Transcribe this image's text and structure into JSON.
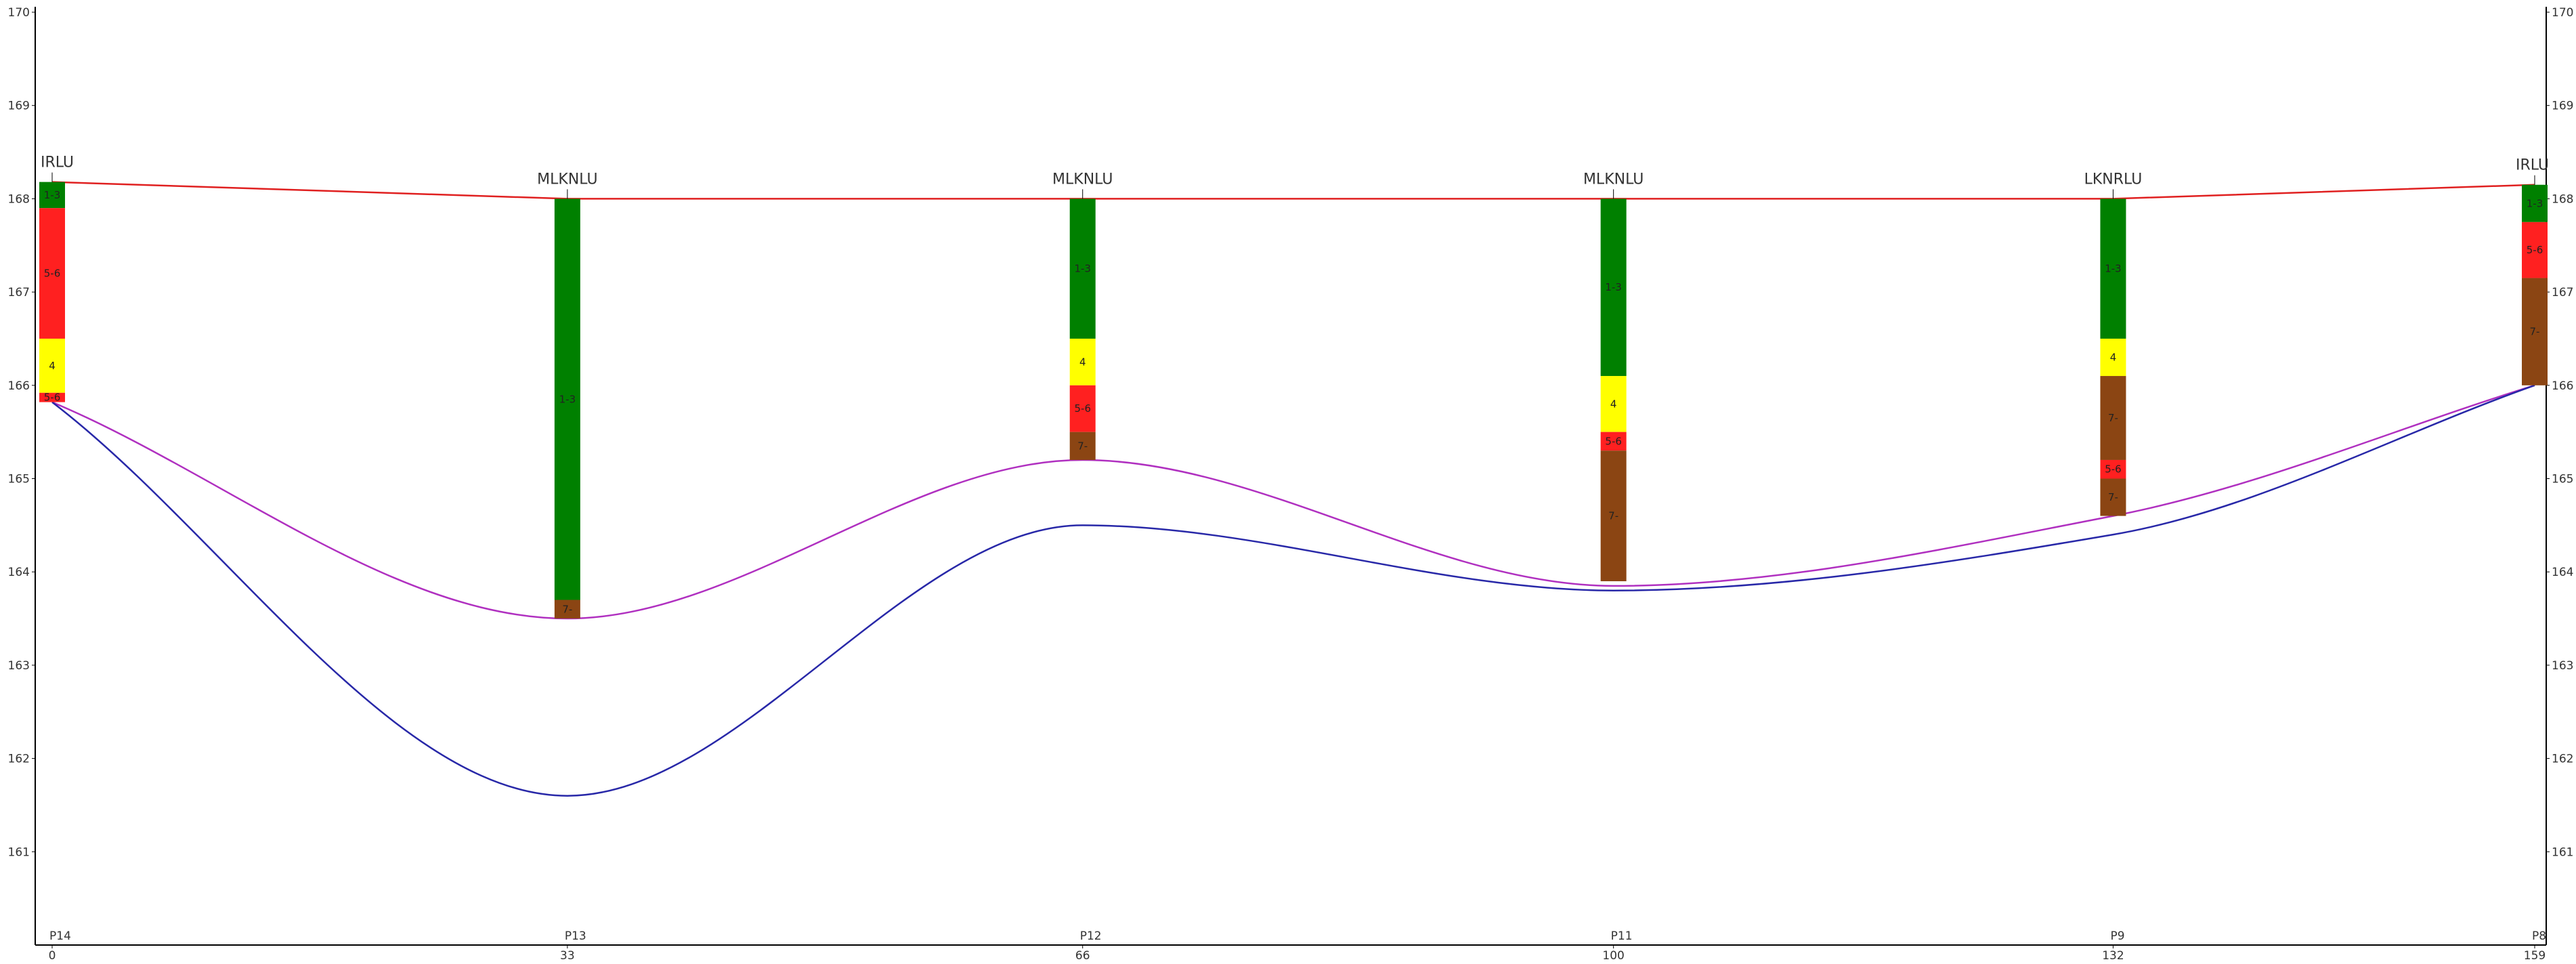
{
  "chart_data": {
    "type": "cross-section",
    "ylim": [
      160,
      170
    ],
    "xlim": [
      0,
      159
    ],
    "y_ticks": [
      "170",
      "169",
      "168",
      "167",
      "166",
      "165",
      "164",
      "163",
      "162",
      "161"
    ],
    "x_ticks": [
      {
        "dist": 0,
        "point": "P14",
        "value": "0"
      },
      {
        "dist": 33,
        "point": "P13",
        "value": "33"
      },
      {
        "dist": 66,
        "point": "P12",
        "value": "66"
      },
      {
        "dist": 100,
        "point": "P11",
        "value": "100"
      },
      {
        "dist": 132,
        "point": "P9",
        "value": "132"
      },
      {
        "dist": 159,
        "point": "P8",
        "value": "159"
      }
    ],
    "boreholes": [
      {
        "dist": 0,
        "label": "IRLU",
        "layers": [
          {
            "top": 168.18,
            "bottom": 167.9,
            "label": "1-3",
            "color": "#008000"
          },
          {
            "top": 167.9,
            "bottom": 166.5,
            "label": "5-6",
            "color": "#ff2020"
          },
          {
            "top": 166.5,
            "bottom": 165.92,
            "label": "4",
            "color": "#ffff00"
          },
          {
            "top": 165.92,
            "bottom": 165.82,
            "label": "5-6",
            "color": "#ff2020"
          }
        ]
      },
      {
        "dist": 33,
        "label": "MLKNLU",
        "layers": [
          {
            "top": 168.0,
            "bottom": 163.7,
            "label": "1-3",
            "color": "#008000"
          },
          {
            "top": 163.7,
            "bottom": 163.5,
            "label": "7-",
            "color": "#8b4513"
          }
        ]
      },
      {
        "dist": 66,
        "label": "MLKNLU",
        "layers": [
          {
            "top": 168.0,
            "bottom": 166.5,
            "label": "1-3",
            "color": "#008000"
          },
          {
            "top": 166.5,
            "bottom": 166.0,
            "label": "4",
            "color": "#ffff00"
          },
          {
            "top": 166.0,
            "bottom": 165.5,
            "label": "5-6",
            "color": "#ff2020"
          },
          {
            "top": 165.5,
            "bottom": 165.2,
            "label": "7-",
            "color": "#8b4513"
          }
        ]
      },
      {
        "dist": 100,
        "label": "MLKNLU",
        "layers": [
          {
            "top": 168.0,
            "bottom": 166.1,
            "label": "1-3",
            "color": "#008000"
          },
          {
            "top": 166.1,
            "bottom": 165.5,
            "label": "4",
            "color": "#ffff00"
          },
          {
            "top": 165.5,
            "bottom": 165.3,
            "label": "5-6",
            "color": "#ff2020"
          },
          {
            "top": 165.3,
            "bottom": 163.9,
            "label": "7-",
            "color": "#8b4513"
          }
        ]
      },
      {
        "dist": 132,
        "label": "LKNRLU",
        "layers": [
          {
            "top": 168.0,
            "bottom": 166.5,
            "label": "1-3",
            "color": "#008000"
          },
          {
            "top": 166.5,
            "bottom": 166.1,
            "label": "4",
            "color": "#ffff00"
          },
          {
            "top": 166.1,
            "bottom": 165.2,
            "label": "7-",
            "color": "#8b4513"
          },
          {
            "top": 165.2,
            "bottom": 165.0,
            "label": "5-6",
            "color": "#ff2020"
          },
          {
            "top": 165.0,
            "bottom": 164.6,
            "label": "7-",
            "color": "#8b4513"
          }
        ]
      },
      {
        "dist": 159,
        "label": "IRLU",
        "layers": [
          {
            "top": 168.15,
            "bottom": 167.75,
            "label": "1-3",
            "color": "#008000"
          },
          {
            "top": 167.75,
            "bottom": 167.15,
            "label": "5-6",
            "color": "#ff2020"
          },
          {
            "top": 167.15,
            "bottom": 166.0,
            "label": "7-",
            "color": "#8b4513"
          }
        ]
      }
    ],
    "lines": [
      {
        "color": "#e02020",
        "curve": false,
        "points": [
          [
            0,
            168.18
          ],
          [
            33,
            168.0
          ],
          [
            66,
            168.0
          ],
          [
            100,
            168.0
          ],
          [
            132,
            168.0
          ],
          [
            159,
            168.15
          ]
        ]
      },
      {
        "color": "#b030c0",
        "curve": true,
        "points": [
          [
            0,
            165.82
          ],
          [
            33,
            163.5
          ],
          [
            66,
            165.2
          ],
          [
            100,
            163.85
          ],
          [
            132,
            164.6
          ],
          [
            159,
            166.0
          ]
        ]
      },
      {
        "color": "#2828a8",
        "curve": true,
        "points": [
          [
            0,
            165.82
          ],
          [
            33,
            161.6
          ],
          [
            66,
            164.5
          ],
          [
            100,
            163.8
          ],
          [
            132,
            164.4
          ],
          [
            159,
            166.0
          ]
        ]
      }
    ]
  }
}
